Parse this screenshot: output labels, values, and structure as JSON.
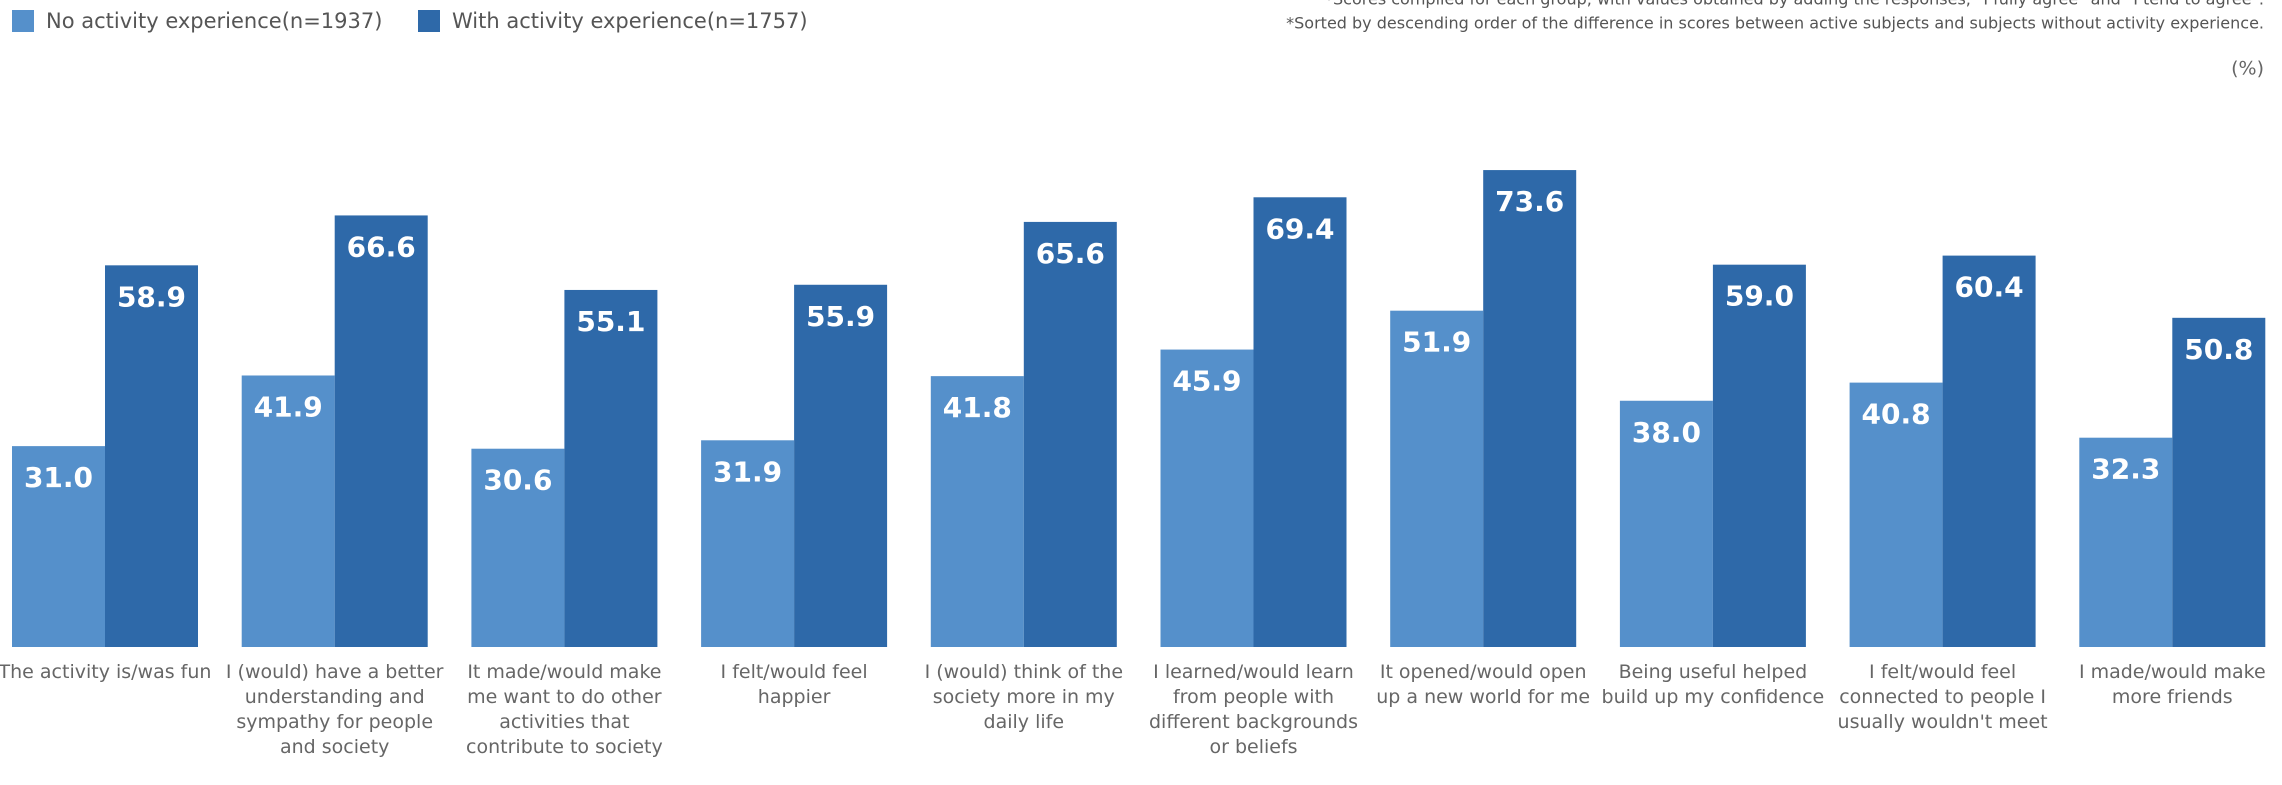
{
  "chart_data": {
    "type": "bar",
    "notes": [
      "*Scores compiled for each group, with values obtained by adding the responses, \"I fully agree\" and \"I tend to agree\".",
      "*Sorted by descending order of the difference in scores between active subjects and subjects without activity experience."
    ],
    "unit": "(%)",
    "categories": [
      "The activity is/was fun",
      "I (would) have a better understanding and sympathy for people and society",
      "It made/would make me want to do other activities that contribute to society",
      "I felt/would feel happier",
      "I (would) think of the society more in my daily life",
      "I learned/would learn from people with different backgrounds or beliefs",
      "It opened/would open up a new world for me",
      "Being useful helped build up my confidence",
      "I felt/would feel connected to people I usually wouldn't meet",
      "I made/would make more friends"
    ],
    "series": [
      {
        "name": "No activity experience(n=1937)",
        "color": "#5590cb",
        "values": [
          31.0,
          41.9,
          30.6,
          31.9,
          41.8,
          45.9,
          51.9,
          38.0,
          40.8,
          32.3
        ],
        "value_labels": [
          "31.0",
          "41.9",
          "30.6",
          "31.9",
          "41.8",
          "45.9",
          "51.9",
          "38.0",
          "40.8",
          "32.3"
        ]
      },
      {
        "name": "With activity experience(n=1757)",
        "color": "#2e69a9",
        "values": [
          58.9,
          66.6,
          55.1,
          55.9,
          65.6,
          69.4,
          73.6,
          59.0,
          60.4,
          50.8
        ],
        "value_labels": [
          "58.9",
          "66.6",
          "55.1",
          "55.9",
          "65.6",
          "69.4",
          "73.6",
          "59.0",
          "60.4",
          "50.8"
        ]
      }
    ],
    "legend": "top-left"
  }
}
